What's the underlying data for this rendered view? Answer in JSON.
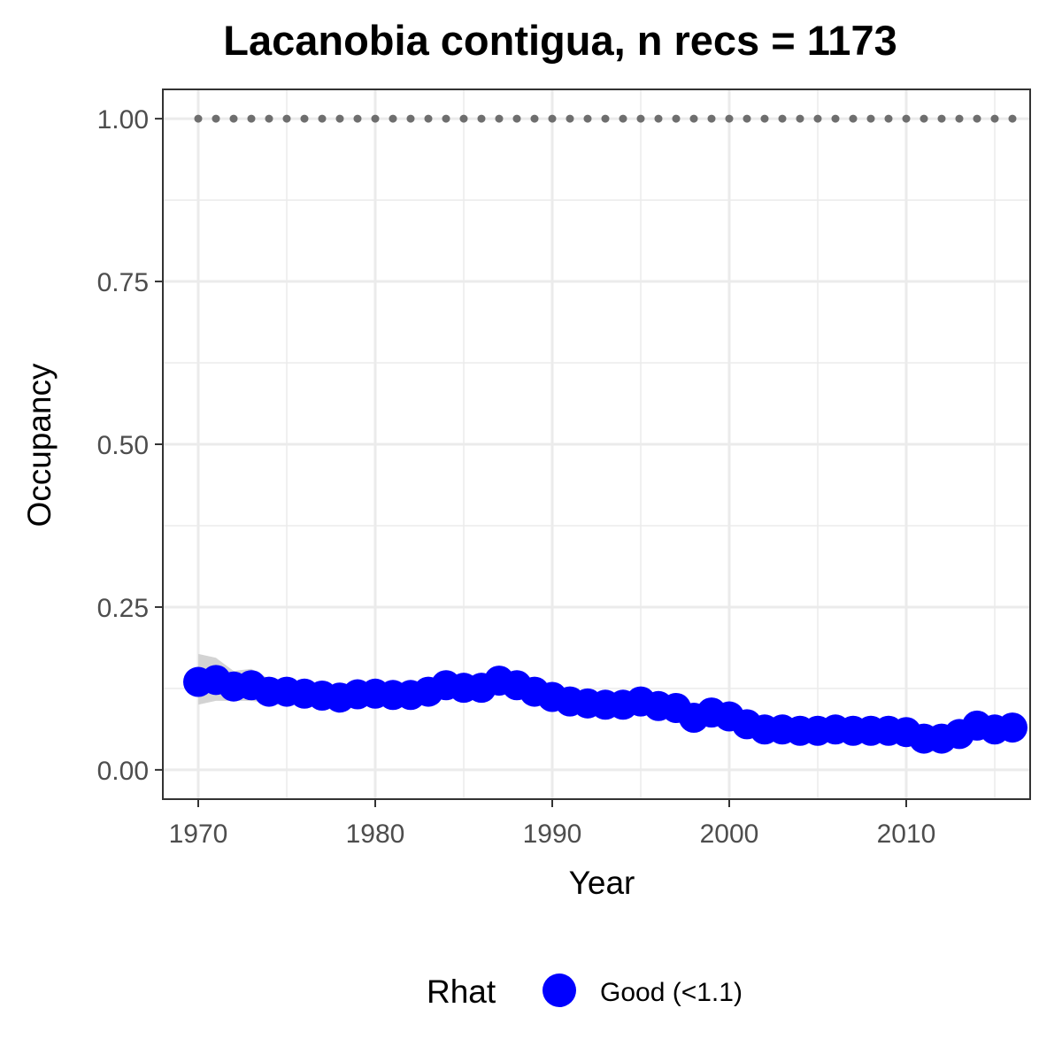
{
  "chart_data": {
    "type": "line",
    "title": "Lacanobia contigua, n recs = 1173",
    "xlabel": "Year",
    "ylabel": "Occupancy",
    "xlim": [
      1968,
      2017
    ],
    "ylim": [
      -0.045,
      1.045
    ],
    "x_ticks": [
      1970,
      1980,
      1990,
      2000,
      2010
    ],
    "x_tick_labels": [
      "1970",
      "1980",
      "1990",
      "2000",
      "2010"
    ],
    "y_ticks": [
      0,
      0.25,
      0.5,
      0.75,
      1.0
    ],
    "y_tick_labels": [
      "0.00",
      "0.25",
      "0.50",
      "0.75",
      "1.00"
    ],
    "grid": true,
    "legend": {
      "title": "Rhat",
      "position": "bottom",
      "entries": [
        {
          "label": "Good (<1.1)",
          "color": "#0000ff"
        }
      ]
    },
    "colors": {
      "points": "#0000ff",
      "ribbon": "#d3d3d3",
      "reference": "#6e6e6e",
      "panel_border": "#333333",
      "grid": "#ebebeb"
    },
    "x": [
      1970,
      1971,
      1972,
      1973,
      1974,
      1975,
      1976,
      1977,
      1978,
      1979,
      1980,
      1981,
      1982,
      1983,
      1984,
      1985,
      1986,
      1987,
      1988,
      1989,
      1990,
      1991,
      1992,
      1993,
      1994,
      1995,
      1996,
      1997,
      1998,
      1999,
      2000,
      2001,
      2002,
      2003,
      2004,
      2005,
      2006,
      2007,
      2008,
      2009,
      2010,
      2011,
      2012,
      2013,
      2014,
      2015,
      2016
    ],
    "series": [
      {
        "name": "Good (<1.1)",
        "values": [
          0.135,
          0.138,
          0.128,
          0.13,
          0.12,
          0.12,
          0.117,
          0.114,
          0.111,
          0.116,
          0.117,
          0.115,
          0.115,
          0.12,
          0.13,
          0.126,
          0.126,
          0.137,
          0.13,
          0.12,
          0.112,
          0.105,
          0.102,
          0.1,
          0.1,
          0.105,
          0.098,
          0.095,
          0.08,
          0.088,
          0.082,
          0.07,
          0.062,
          0.062,
          0.06,
          0.06,
          0.062,
          0.06,
          0.06,
          0.06,
          0.058,
          0.048,
          0.048,
          0.055,
          0.068,
          0.062,
          0.065
        ],
        "lower": [
          0.1,
          0.106,
          0.106,
          0.106,
          0.102,
          0.102,
          0.1,
          0.099,
          0.096,
          0.1,
          0.101,
          0.1,
          0.1,
          0.105,
          0.114,
          0.111,
          0.111,
          0.121,
          0.114,
          0.105,
          0.097,
          0.09,
          0.088,
          0.086,
          0.086,
          0.091,
          0.084,
          0.081,
          0.066,
          0.074,
          0.068,
          0.057,
          0.05,
          0.05,
          0.048,
          0.048,
          0.05,
          0.048,
          0.048,
          0.048,
          0.046,
          0.037,
          0.037,
          0.044,
          0.056,
          0.05,
          0.053
        ],
        "upper": [
          0.178,
          0.172,
          0.152,
          0.155,
          0.14,
          0.138,
          0.134,
          0.13,
          0.127,
          0.132,
          0.133,
          0.131,
          0.131,
          0.136,
          0.147,
          0.143,
          0.143,
          0.155,
          0.147,
          0.136,
          0.128,
          0.121,
          0.117,
          0.115,
          0.115,
          0.12,
          0.113,
          0.11,
          0.095,
          0.103,
          0.097,
          0.084,
          0.075,
          0.075,
          0.073,
          0.073,
          0.075,
          0.073,
          0.073,
          0.073,
          0.071,
          0.061,
          0.061,
          0.068,
          0.082,
          0.076,
          0.079
        ]
      }
    ],
    "reference_line": {
      "y": 1.0,
      "style": "dotted"
    }
  }
}
